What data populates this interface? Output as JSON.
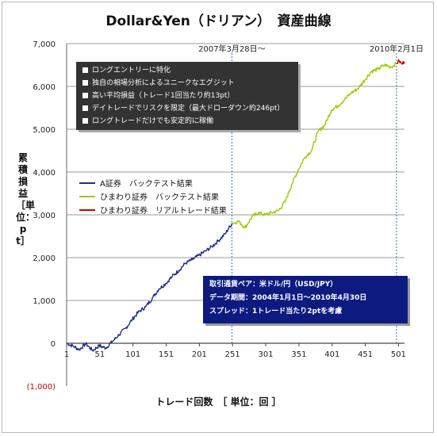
{
  "chart_data": {
    "type": "line",
    "title": "Dollar&Yen（ドリアン）　資産曲線",
    "ylabel": "累積損益［単位：pt］",
    "xlabel": "トレード回数　［ 単位：回 ］",
    "xlim": [
      1,
      510
    ],
    "ylim": [
      -1000,
      7000
    ],
    "x_ticks": [
      "1",
      "51",
      "101",
      "151",
      "201",
      "251",
      "301",
      "351",
      "401",
      "451",
      "501"
    ],
    "y_ticks": [
      "(1,000)",
      "0",
      "1,000",
      "2,000",
      "3,000",
      "4,000",
      "5,000",
      "6,000",
      "7,000"
    ],
    "grid": true,
    "legend_position": "left-middle",
    "series": [
      {
        "name": "A証券　バックテスト結果",
        "color": "#1f2d8c",
        "x": [
          1,
          10,
          20,
          30,
          40,
          50,
          60,
          70,
          80,
          90,
          100,
          110,
          120,
          130,
          140,
          150,
          160,
          170,
          180,
          190,
          200,
          210,
          220,
          230,
          240,
          250
        ],
        "y": [
          0,
          -60,
          -150,
          -10,
          -170,
          -60,
          -110,
          40,
          200,
          350,
          560,
          740,
          850,
          1050,
          1270,
          1390,
          1560,
          1700,
          1870,
          1950,
          2050,
          2150,
          2260,
          2400,
          2560,
          2800
        ]
      },
      {
        "name": "ひまわり証券　バックテスト結果",
        "color": "#99cc00",
        "x": [
          250,
          260,
          270,
          280,
          290,
          300,
          310,
          320,
          330,
          340,
          350,
          360,
          370,
          380,
          390,
          400,
          410,
          420,
          430,
          440,
          450,
          460,
          470,
          480,
          490,
          498
        ],
        "y": [
          2800,
          2850,
          2700,
          2950,
          3050,
          3000,
          3050,
          3100,
          3300,
          3700,
          4050,
          4350,
          4500,
          4950,
          5100,
          5450,
          5550,
          5700,
          5850,
          5950,
          6150,
          6350,
          6400,
          6500,
          6450,
          6540
        ]
      },
      {
        "name": "ひまわり証券　リアルトレード結果",
        "color": "#cc0000",
        "x": [
          498,
          502,
          506,
          510
        ],
        "y": [
          6540,
          6600,
          6520,
          6580
        ]
      }
    ],
    "vlines": [
      {
        "x": 250,
        "label": "2007年3月28日～"
      },
      {
        "x": 498,
        "label": "2010年2月1日"
      }
    ]
  },
  "features_box": {
    "items": [
      "ロングエントリーに特化",
      "独自の相場分析によるユニークなエグジット",
      "高い平均損益（トレード1回当たり約13pt）",
      "デイトレードでリスクを限定（最大ドローダウン約246pt）",
      "ロングトレードだけでも安定的に稼働"
    ]
  },
  "info_box": {
    "pair": "取引通貨ペア：米ドル/円（USD/JPY）",
    "period": "データ期間：2004年1月1日～2010年4月30日",
    "spread": "スプレッド：1トレード当たり2ptを考慮"
  }
}
